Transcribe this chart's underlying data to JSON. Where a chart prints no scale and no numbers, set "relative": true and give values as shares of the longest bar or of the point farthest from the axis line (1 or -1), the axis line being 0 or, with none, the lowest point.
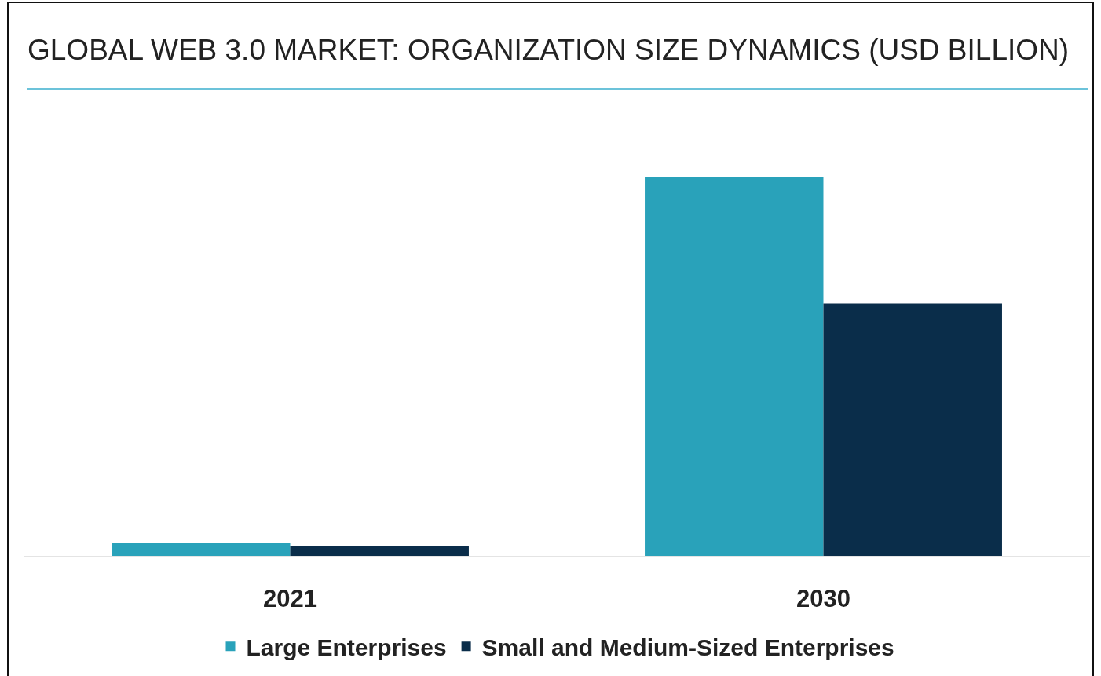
{
  "chart_data": {
    "type": "bar",
    "title": "GLOBAL WEB 3.0 MARKET: ORGANIZATION SIZE DYNAMICS (USD BILLION)",
    "categories": [
      "2021",
      "2030"
    ],
    "series": [
      {
        "name": "Large Enterprises",
        "color": "#29a2ba",
        "values": [
          0.035,
          1
        ]
      },
      {
        "name": "Small and Medium-Sized Enterprises",
        "color": "#0a2d4a",
        "values": [
          0.025,
          0.666
        ]
      }
    ],
    "relative": true,
    "legend": "bottom"
  }
}
